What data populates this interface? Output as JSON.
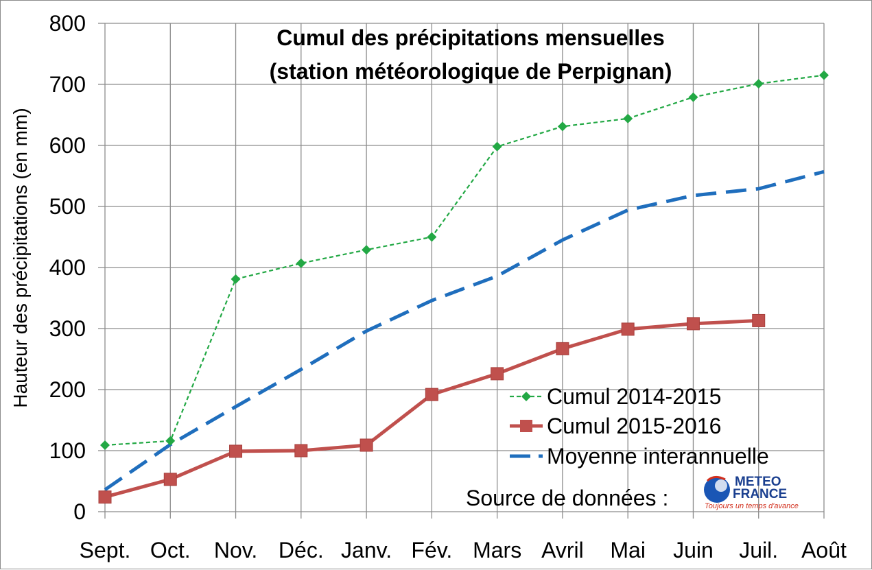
{
  "chart_data": {
    "type": "line",
    "title_lines": [
      "Cumul des précipitations mensuelles",
      "(station météorologique de Perpignan)"
    ],
    "ylabel": "Hauteur des précipitations (en mm)",
    "xlabel": "",
    "ylim": [
      0,
      800
    ],
    "yticks": [
      0,
      100,
      200,
      300,
      400,
      500,
      600,
      700,
      800
    ],
    "categories": [
      "Sept.",
      "Oct.",
      "Nov.",
      "Déc.",
      "Janv.",
      "Fév.",
      "Mars",
      "Avril",
      "Mai",
      "Juin",
      "Juil.",
      "Août"
    ],
    "grid": true,
    "legend_position": "bottom-right",
    "series": [
      {
        "name": "Cumul 2014-2015",
        "color": "#22a844",
        "style": "dotted-diamond",
        "values": [
          109,
          116,
          381,
          407,
          429,
          450,
          598,
          631,
          644,
          679,
          701,
          715
        ]
      },
      {
        "name": "Cumul 2015-2016",
        "color": "#c0504d",
        "style": "solid-square",
        "values": [
          24,
          53,
          99,
          100,
          109,
          192,
          226,
          267,
          299,
          308,
          313,
          null
        ]
      },
      {
        "name": "Moyenne interannuelle",
        "color": "#1f6ebd",
        "style": "dashed",
        "values": [
          36,
          110,
          172,
          233,
          296,
          346,
          386,
          445,
          494,
          518,
          529,
          557
        ]
      }
    ],
    "source_label": "Source de données :",
    "logo_text": [
      "METEO",
      "FRANCE"
    ],
    "logo_slogan": "Toujours un temps d'avance"
  }
}
